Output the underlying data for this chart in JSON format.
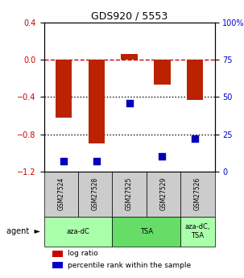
{
  "title": "GDS920 / 5553",
  "samples": [
    "GSM27524",
    "GSM27528",
    "GSM27525",
    "GSM27529",
    "GSM27526"
  ],
  "log_ratios": [
    -0.62,
    -0.9,
    0.06,
    -0.27,
    -0.43
  ],
  "percentile_ranks": [
    7,
    7,
    46,
    10,
    22
  ],
  "ylim_left": [
    -1.2,
    0.4
  ],
  "ylim_right": [
    0,
    100
  ],
  "yticks_left": [
    0.4,
    0.0,
    -0.4,
    -0.8,
    -1.2
  ],
  "yticks_right": [
    100,
    75,
    50,
    25,
    0
  ],
  "bar_color": "#bb2200",
  "dot_color": "#0000bb",
  "agent_groups": [
    {
      "label": "aza-dC",
      "start": 0,
      "end": 2,
      "color": "#aaffaa"
    },
    {
      "label": "TSA",
      "start": 2,
      "end": 4,
      "color": "#66dd66"
    },
    {
      "label": "aza-dC,\nTSA",
      "start": 4,
      "end": 5,
      "color": "#aaffaa"
    }
  ],
  "gsm_bg_color": "#cccccc",
  "zero_line_color": "#cc0000",
  "dotted_line_color": "#000000",
  "legend_log_color": "#cc0000",
  "legend_pct_color": "#0000cc"
}
